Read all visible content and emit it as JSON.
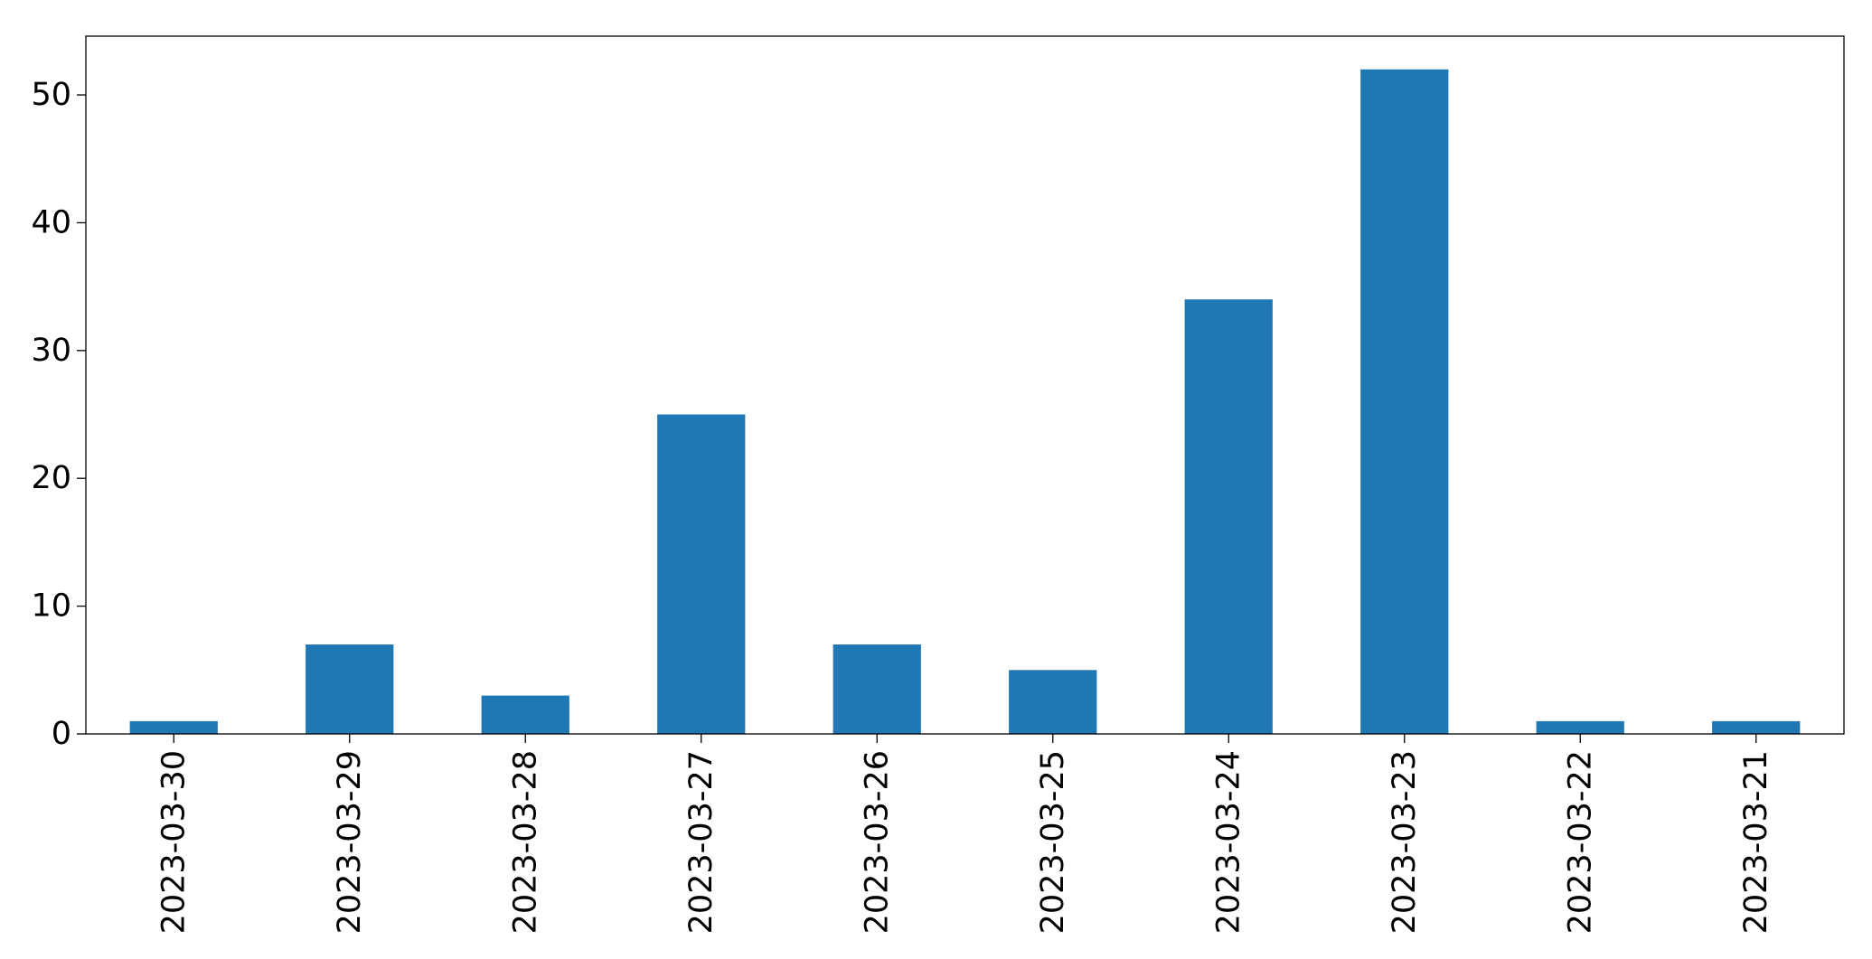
{
  "chart_data": {
    "type": "bar",
    "title": "",
    "xlabel": "",
    "ylabel": "",
    "categories": [
      "2023-03-30",
      "2023-03-29",
      "2023-03-28",
      "2023-03-27",
      "2023-03-26",
      "2023-03-25",
      "2023-03-24",
      "2023-03-23",
      "2023-03-22",
      "2023-03-21"
    ],
    "values": [
      1,
      7,
      3,
      25,
      7,
      5,
      34,
      52,
      1,
      1
    ],
    "ylim": [
      0,
      54.6
    ],
    "yticks": [
      0,
      10,
      20,
      30,
      40,
      50
    ],
    "ytick_labels": [
      "0",
      "10",
      "20",
      "30",
      "40",
      "50"
    ],
    "bar_color": "#1f77b4",
    "grid": false,
    "legend": "none"
  }
}
